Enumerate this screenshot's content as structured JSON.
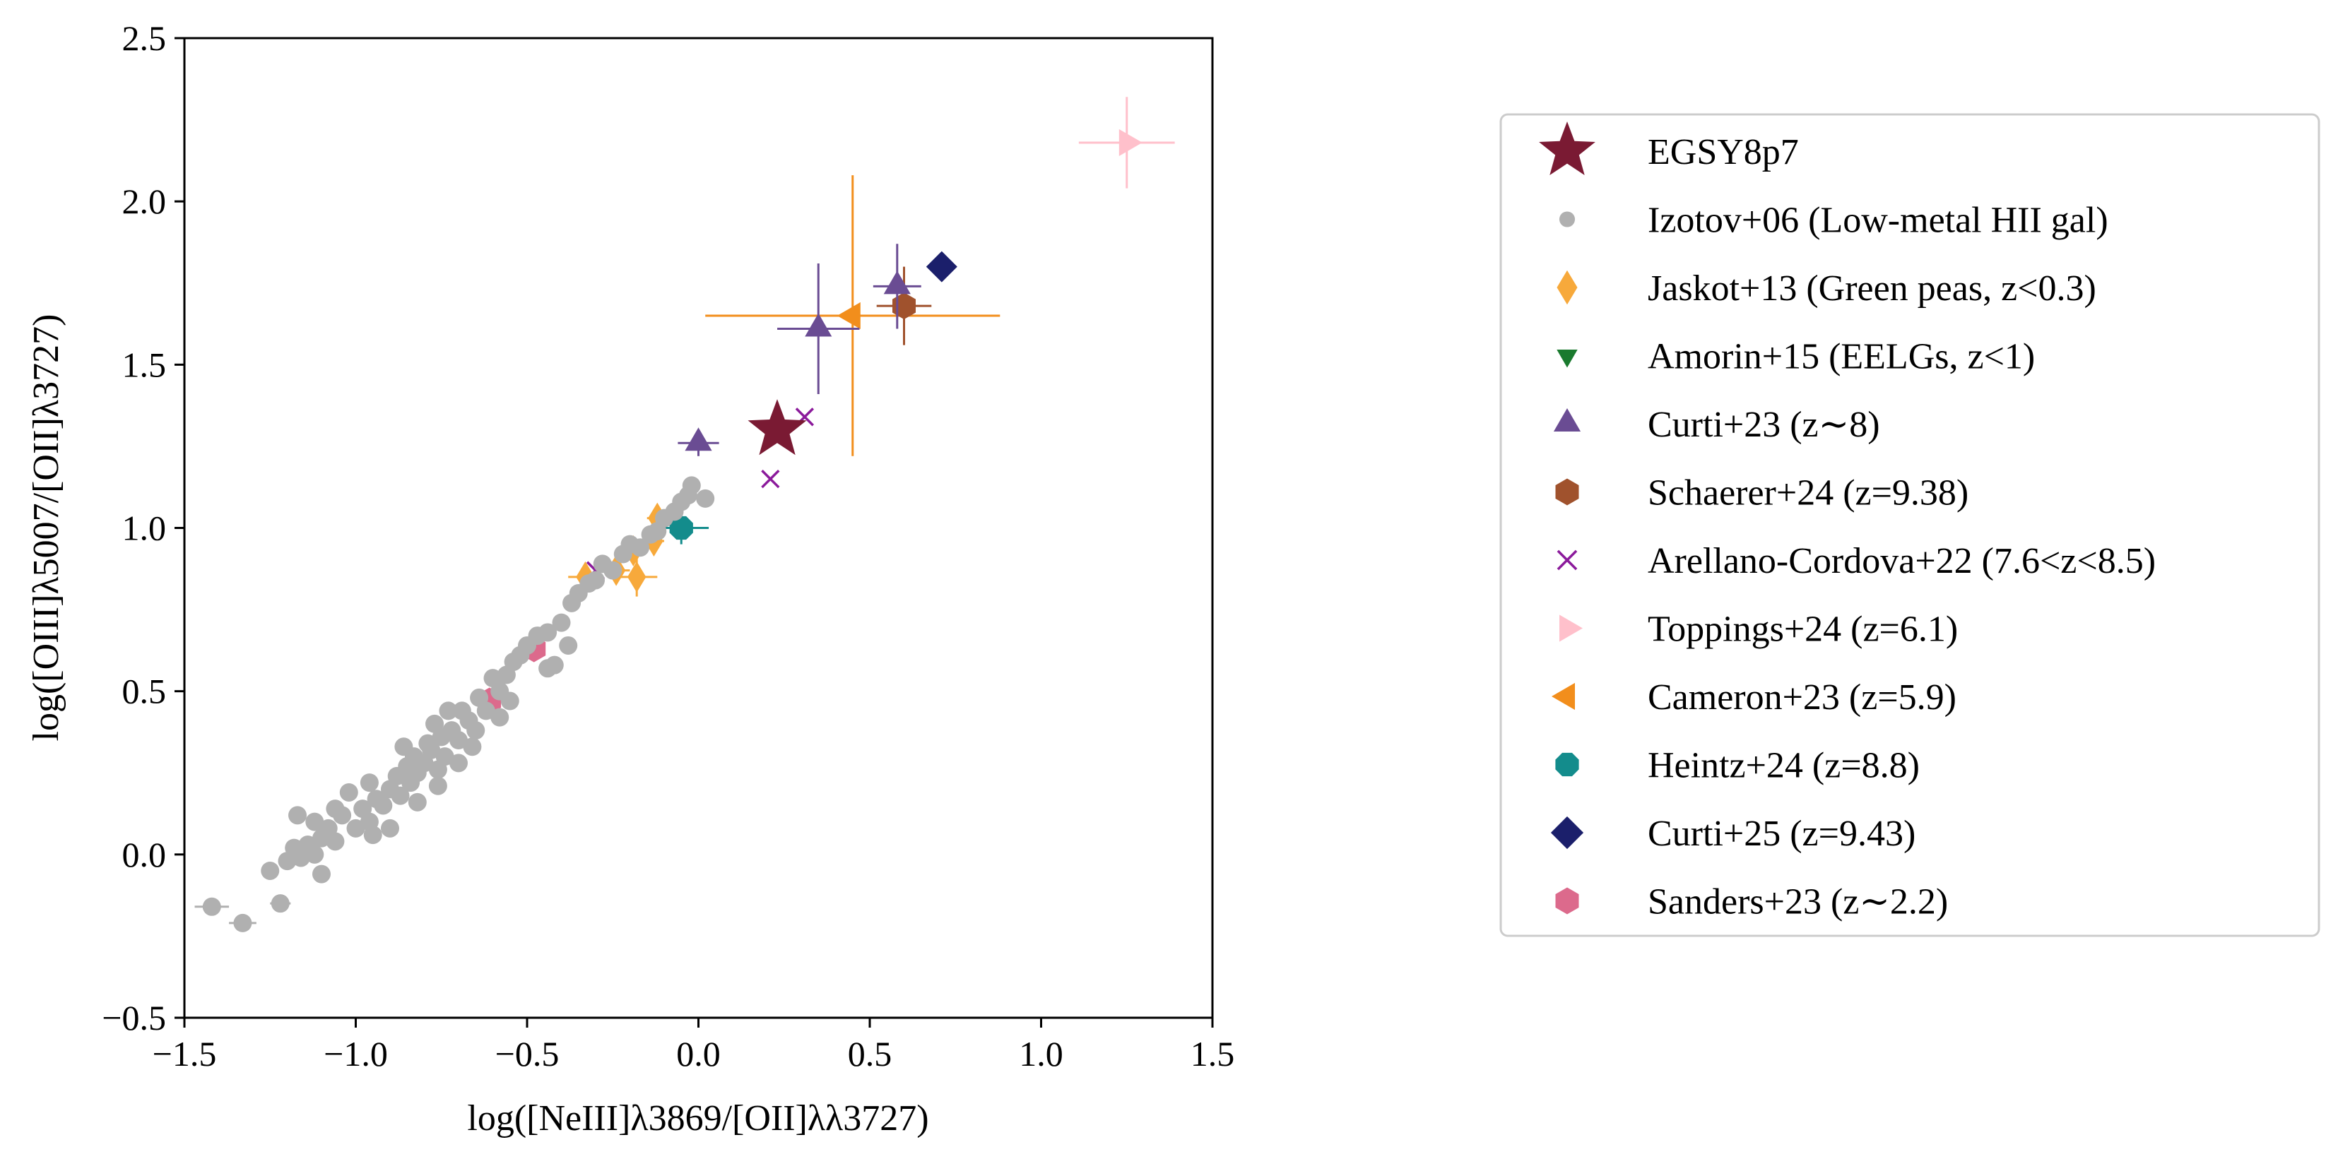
{
  "chart_data": {
    "type": "scatter",
    "title": "",
    "xlabel": "log([NeIII]λ3869/[OII]λλ3727)",
    "ylabel": "log([OIII]λ5007/[OII]λ3727)",
    "xlim": [
      -1.5,
      1.5
    ],
    "ylim": [
      -0.5,
      2.5
    ],
    "xticks": [
      -1.5,
      -1.0,
      -0.5,
      0.0,
      0.5,
      1.0,
      1.5
    ],
    "yticks": [
      -0.5,
      0.0,
      0.5,
      1.0,
      1.5,
      2.0,
      2.5
    ],
    "xtick_labels": [
      "−1.5",
      "−1.0",
      "−0.5",
      "0.0",
      "0.5",
      "1.0",
      "1.5"
    ],
    "ytick_labels": [
      "−0.5",
      "0.0",
      "0.5",
      "1.0",
      "1.5",
      "2.0",
      "2.5"
    ],
    "grid": false,
    "legend_position": "outside-right",
    "series": [
      {
        "name": "EGSY8p7",
        "marker": "star",
        "color": "#7a1a33",
        "points": [
          {
            "x": 0.23,
            "y": 1.3
          }
        ]
      },
      {
        "name": "Izotov+06 (Low-metal HII gal)",
        "marker": "circle",
        "color": "#b0b0b0",
        "points": [
          {
            "x": -1.42,
            "y": -0.16,
            "xerr": 0.05
          },
          {
            "x": -1.33,
            "y": -0.21,
            "xerr": 0.04
          },
          {
            "x": -1.25,
            "y": -0.05
          },
          {
            "x": -1.22,
            "y": -0.15,
            "xerr": 0.03
          },
          {
            "x": -1.2,
            "y": -0.02
          },
          {
            "x": -1.18,
            "y": 0.02
          },
          {
            "x": -1.16,
            "y": -0.01
          },
          {
            "x": -1.14,
            "y": 0.03
          },
          {
            "x": -1.12,
            "y": 0.0
          },
          {
            "x": -1.1,
            "y": -0.06
          },
          {
            "x": -1.17,
            "y": 0.12
          },
          {
            "x": -1.12,
            "y": 0.1
          },
          {
            "x": -1.1,
            "y": 0.05
          },
          {
            "x": -1.08,
            "y": 0.08
          },
          {
            "x": -1.06,
            "y": 0.14
          },
          {
            "x": -1.04,
            "y": 0.12
          },
          {
            "x": -1.02,
            "y": 0.19
          },
          {
            "x": -1.0,
            "y": 0.08
          },
          {
            "x": -0.98,
            "y": 0.14
          },
          {
            "x": -0.96,
            "y": 0.1
          },
          {
            "x": -0.95,
            "y": 0.06
          },
          {
            "x": -0.94,
            "y": 0.17
          },
          {
            "x": -0.92,
            "y": 0.15
          },
          {
            "x": -0.9,
            "y": 0.2
          },
          {
            "x": -0.88,
            "y": 0.24
          },
          {
            "x": -0.87,
            "y": 0.18
          },
          {
            "x": -0.86,
            "y": 0.33
          },
          {
            "x": -0.85,
            "y": 0.27
          },
          {
            "x": -0.84,
            "y": 0.22
          },
          {
            "x": -0.83,
            "y": 0.3
          },
          {
            "x": -0.82,
            "y": 0.25
          },
          {
            "x": -0.8,
            "y": 0.28
          },
          {
            "x": -0.79,
            "y": 0.34
          },
          {
            "x": -0.78,
            "y": 0.32
          },
          {
            "x": -0.77,
            "y": 0.4
          },
          {
            "x": -0.76,
            "y": 0.26
          },
          {
            "x": -0.75,
            "y": 0.36
          },
          {
            "x": -0.74,
            "y": 0.3
          },
          {
            "x": -0.73,
            "y": 0.44
          },
          {
            "x": -0.72,
            "y": 0.38
          },
          {
            "x": -0.7,
            "y": 0.35
          },
          {
            "x": -0.69,
            "y": 0.44
          },
          {
            "x": -0.67,
            "y": 0.41
          },
          {
            "x": -0.65,
            "y": 0.38
          },
          {
            "x": -0.64,
            "y": 0.48
          },
          {
            "x": -0.62,
            "y": 0.44
          },
          {
            "x": -0.6,
            "y": 0.54
          },
          {
            "x": -0.58,
            "y": 0.5
          },
          {
            "x": -0.56,
            "y": 0.55
          },
          {
            "x": -0.54,
            "y": 0.59
          },
          {
            "x": -0.52,
            "y": 0.61
          },
          {
            "x": -0.5,
            "y": 0.64
          },
          {
            "x": -0.47,
            "y": 0.67
          },
          {
            "x": -0.44,
            "y": 0.68
          },
          {
            "x": -0.42,
            "y": 0.58
          },
          {
            "x": -0.4,
            "y": 0.71
          },
          {
            "x": -0.37,
            "y": 0.77
          },
          {
            "x": -0.35,
            "y": 0.8
          },
          {
            "x": -0.32,
            "y": 0.83
          },
          {
            "x": -0.3,
            "y": 0.84
          },
          {
            "x": -0.28,
            "y": 0.89
          },
          {
            "x": -0.25,
            "y": 0.87
          },
          {
            "x": -0.22,
            "y": 0.92
          },
          {
            "x": -0.2,
            "y": 0.95
          },
          {
            "x": -0.17,
            "y": 0.94
          },
          {
            "x": -0.14,
            "y": 0.98
          },
          {
            "x": -0.12,
            "y": 0.99
          },
          {
            "x": -0.1,
            "y": 1.03
          },
          {
            "x": -0.07,
            "y": 1.05
          },
          {
            "x": -0.05,
            "y": 1.08
          },
          {
            "x": -0.03,
            "y": 1.1
          },
          {
            "x": -0.02,
            "y": 1.13
          },
          {
            "x": 0.02,
            "y": 1.09
          },
          {
            "x": -0.9,
            "y": 0.08
          },
          {
            "x": -0.96,
            "y": 0.22
          },
          {
            "x": -1.06,
            "y": 0.04
          },
          {
            "x": -0.82,
            "y": 0.16
          },
          {
            "x": -0.76,
            "y": 0.21
          },
          {
            "x": -0.7,
            "y": 0.28
          },
          {
            "x": -0.66,
            "y": 0.33
          },
          {
            "x": -0.58,
            "y": 0.42
          },
          {
            "x": -0.55,
            "y": 0.47
          },
          {
            "x": -0.44,
            "y": 0.57
          },
          {
            "x": -0.38,
            "y": 0.64
          }
        ]
      },
      {
        "name": "Jaskot+13 (Green peas, z<0.3)",
        "marker": "thin_diamond",
        "color": "#f7a93b",
        "points": [
          {
            "x": -0.33,
            "y": 0.85,
            "xerr": 0.05,
            "yerr": 0.04
          },
          {
            "x": -0.24,
            "y": 0.87,
            "xerr": 0.04,
            "yerr": 0.04
          },
          {
            "x": -0.18,
            "y": 0.85,
            "xerr": 0.06,
            "yerr": 0.06
          },
          {
            "x": -0.19,
            "y": 0.93,
            "xerr": 0.03,
            "yerr": 0.04
          },
          {
            "x": -0.13,
            "y": 0.96,
            "xerr": 0.03,
            "yerr": 0.04
          },
          {
            "x": -0.12,
            "y": 1.03,
            "xerr": 0.03,
            "yerr": 0.04
          }
        ]
      },
      {
        "name": "Amorin+15 (EELGs, z<1)",
        "marker": "triangle_down",
        "color": "#1a7a2e",
        "points": []
      },
      {
        "name": "Curti+23 (z∼8)",
        "marker": "triangle_up",
        "color": "#6a4c93",
        "points": [
          {
            "x": 0.0,
            "y": 1.26,
            "xerr": 0.06,
            "yerr": 0.04
          },
          {
            "x": 0.35,
            "y": 1.61,
            "xerr": 0.12,
            "yerr": 0.2
          },
          {
            "x": 0.58,
            "y": 1.74,
            "xerr": 0.07,
            "yerr": 0.13
          }
        ]
      },
      {
        "name": "Schaerer+24 (z=9.38)",
        "marker": "hexagon",
        "color": "#a0522d",
        "points": [
          {
            "x": 0.6,
            "y": 1.68,
            "xerr": 0.08,
            "yerr": 0.12
          }
        ]
      },
      {
        "name": "Arellano-Cordova+22 (7.6<z<8.5)",
        "marker": "x",
        "color": "#8b1a9b",
        "points": [
          {
            "x": -0.3,
            "y": 0.87
          },
          {
            "x": 0.21,
            "y": 1.15
          },
          {
            "x": 0.31,
            "y": 1.34
          }
        ]
      },
      {
        "name": "Toppings+24 (z=6.1)",
        "marker": "triangle_right",
        "color": "#ffc0cb",
        "points": [
          {
            "x": 1.25,
            "y": 2.18,
            "xerr": 0.14,
            "yerr": 0.14
          }
        ]
      },
      {
        "name": "Cameron+23 (z=5.9)",
        "marker": "triangle_left",
        "color": "#f28e1c",
        "points": [
          {
            "x": 0.45,
            "y": 1.65,
            "xerr": 0.43,
            "yerr": 0.43
          }
        ]
      },
      {
        "name": "Heintz+24 (z=8.8)",
        "marker": "octagon",
        "color": "#138c8c",
        "points": [
          {
            "x": -0.05,
            "y": 1.0,
            "xerr": 0.08,
            "yerr": 0.05
          }
        ]
      },
      {
        "name": "Curti+25  (z=9.43)",
        "marker": "diamond",
        "color": "#1b1f6b",
        "points": [
          {
            "x": 0.71,
            "y": 1.8
          }
        ]
      },
      {
        "name": "Sanders+23 (z∼2.2)",
        "marker": "hexagon",
        "color": "#dc6a8c",
        "points": [
          {
            "x": -0.61,
            "y": 0.47
          },
          {
            "x": -0.48,
            "y": 0.63
          }
        ]
      }
    ]
  }
}
